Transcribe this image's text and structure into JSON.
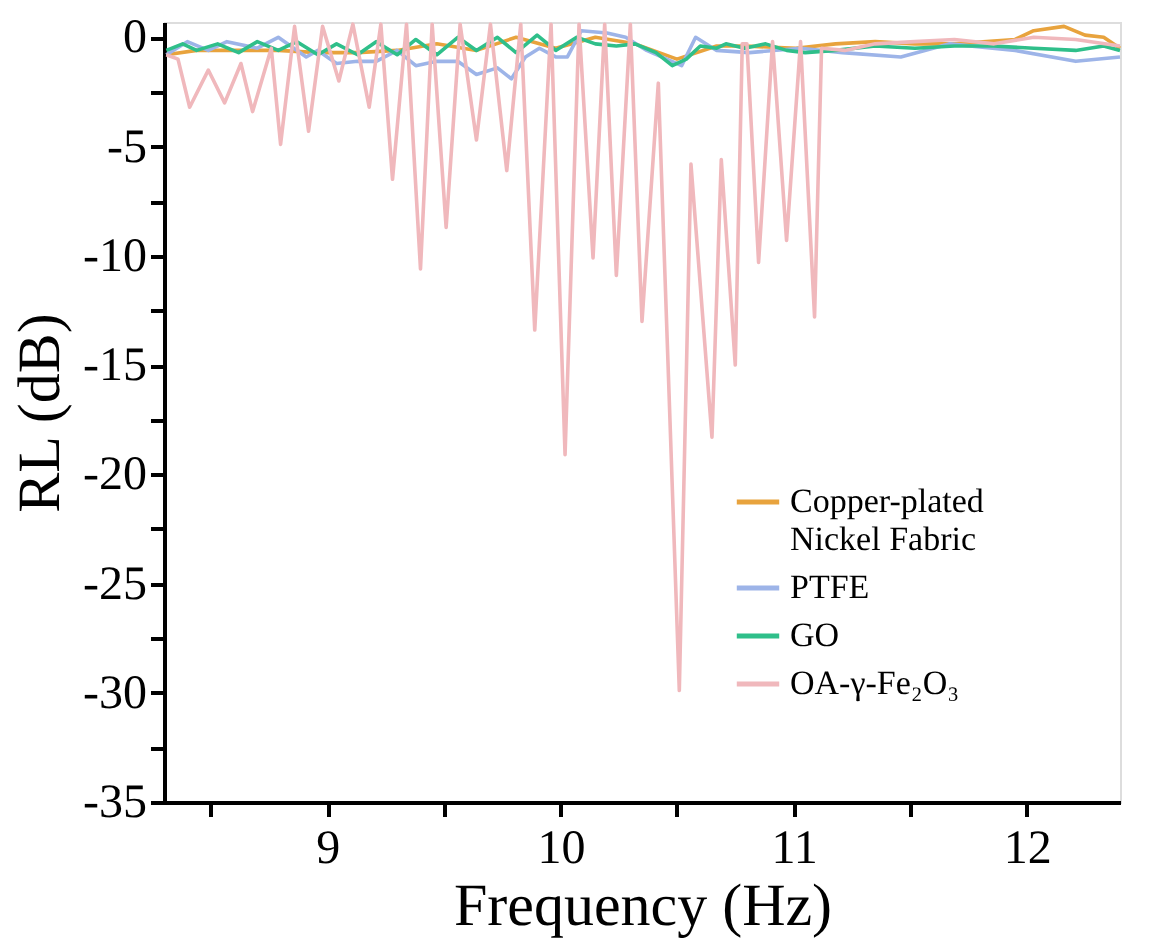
{
  "chart_data": {
    "type": "line",
    "xlabel": "Frequency (Hz)",
    "ylabel": "RL (dB)",
    "xlim": [
      8.3,
      12.4
    ],
    "xticks": [
      {
        "value": 8.5,
        "label": null
      },
      9,
      {
        "value": 9.5,
        "label": null
      },
      10,
      {
        "value": 10.5,
        "label": null
      },
      11,
      {
        "value": 11.5,
        "label": null
      },
      12
    ],
    "ylim": [
      -35,
      0.7
    ],
    "yticks": [
      0,
      {
        "value": -2.5,
        "label": null
      },
      -5,
      {
        "value": -7.5,
        "label": null
      },
      -10,
      {
        "value": -12.5,
        "label": null
      },
      -15,
      {
        "value": -17.5,
        "label": null
      },
      -20,
      {
        "value": -22.5,
        "label": null
      },
      -25,
      {
        "value": -27.5,
        "label": null
      },
      -30,
      {
        "value": -32.5,
        "label": null
      },
      -35
    ],
    "grid": false,
    "legend": "bottom right",
    "marker": "none",
    "line_style": "solid",
    "series": [
      {
        "name": "Copper-plated Nickel Fabric",
        "color": "#e8a33d",
        "x": [
          8.31,
          8.44,
          8.62,
          8.79,
          8.96,
          9.13,
          9.3,
          9.47,
          9.64,
          9.81,
          9.98,
          10.15,
          10.32,
          10.5,
          10.67,
          10.79,
          11.01,
          11.18,
          11.35,
          11.52,
          11.69,
          11.95,
          12.03,
          12.16,
          12.25,
          12.33,
          12.4
        ],
        "values": [
          -0.8,
          -0.6,
          -0.6,
          -0.6,
          -0.7,
          -0.7,
          -0.6,
          -0.3,
          -0.6,
          0,
          -0.5,
          0,
          -0.3,
          -1.0,
          -0.4,
          -0.4,
          -0.5,
          -0.3,
          -0.2,
          -0.3,
          -0.3,
          -0.1,
          0.3,
          0.5,
          0.1,
          0,
          -0.5
        ]
      },
      {
        "name": "PTFE",
        "color": "#9db4e8",
        "x": [
          8.31,
          8.4,
          8.49,
          8.57,
          8.7,
          8.79,
          8.91,
          8.96,
          9.04,
          9.13,
          9.21,
          9.3,
          9.38,
          9.47,
          9.56,
          9.64,
          9.73,
          9.79,
          9.85,
          9.91,
          9.98,
          10.03,
          10.09,
          10.2,
          10.28,
          10.37,
          10.52,
          10.58,
          10.67,
          10.81,
          11.03,
          11.21,
          11.46,
          11.67,
          11.95,
          12.21,
          12.4
        ],
        "values": [
          -0.8,
          -0.2,
          -0.6,
          -0.2,
          -0.5,
          0,
          -0.9,
          -0.6,
          -1.2,
          -1.1,
          -1.1,
          -0.6,
          -1.3,
          -1.1,
          -1.1,
          -1.7,
          -1.4,
          -1.9,
          -0.9,
          -0.5,
          -0.9,
          -0.9,
          0.3,
          0.2,
          0,
          -0.6,
          -1.3,
          0,
          -0.6,
          -0.7,
          -0.5,
          -0.7,
          -0.9,
          -0.3,
          -0.6,
          -1.1,
          -0.9
        ]
      },
      {
        "name": "GO",
        "color": "#2fbf8a",
        "x": [
          8.31,
          8.38,
          8.44,
          8.53,
          8.62,
          8.7,
          8.79,
          8.87,
          8.96,
          9.04,
          9.13,
          9.21,
          9.3,
          9.38,
          9.47,
          9.56,
          9.64,
          9.73,
          9.81,
          9.9,
          9.98,
          10.07,
          10.15,
          10.24,
          10.32,
          10.41,
          10.48,
          10.54,
          10.6,
          10.67,
          10.71,
          10.79,
          10.88,
          10.97,
          11.05,
          11.18,
          11.35,
          11.52,
          11.69,
          11.86,
          12.03,
          12.21,
          12.33,
          12.4
        ],
        "values": [
          -0.6,
          -0.3,
          -0.6,
          -0.3,
          -0.7,
          -0.2,
          -0.6,
          -0.2,
          -0.8,
          -0.3,
          -0.8,
          -0.2,
          -0.8,
          -0.1,
          -0.8,
          0,
          -0.6,
          0,
          -0.7,
          0.1,
          -0.6,
          0,
          -0.3,
          -0.4,
          -0.3,
          -0.7,
          -1.3,
          -1.0,
          -0.4,
          -0.5,
          -0.3,
          -0.5,
          -0.3,
          -0.6,
          -0.7,
          -0.6,
          -0.4,
          -0.5,
          -0.4,
          -0.4,
          -0.5,
          -0.6,
          -0.4,
          -0.6
        ]
      },
      {
        "name": "OA-γ-Fe₂O₃",
        "color": "#f0b8bc",
        "x": [
          8.31,
          8.36,
          8.41,
          8.49,
          8.56,
          8.63,
          8.68,
          8.76,
          8.8,
          8.86,
          8.92,
          8.98,
          9.05,
          9.11,
          9.18,
          9.23,
          9.28,
          9.34,
          9.4,
          9.45,
          9.51,
          9.57,
          9.64,
          9.7,
          9.77,
          9.83,
          9.89,
          9.96,
          10.02,
          10.08,
          10.14,
          10.19,
          10.24,
          10.3,
          10.35,
          10.42,
          10.51,
          10.56,
          10.65,
          10.69,
          10.75,
          10.78,
          10.8,
          10.85,
          10.91,
          10.97,
          11.03,
          11.09,
          11.12,
          11.22,
          11.35,
          11.52,
          11.69,
          11.86,
          12.03,
          12.21,
          12.4
        ],
        "values": [
          -0.8,
          -1.0,
          -3.2,
          -1.5,
          -3.0,
          -1.2,
          -3.4,
          -0.5,
          -4.9,
          0.5,
          -4.3,
          0.5,
          -2.0,
          0.6,
          -3.2,
          0.6,
          -6.5,
          0.6,
          -10.6,
          0.6,
          -8.7,
          0.6,
          -4.7,
          0.6,
          -6.1,
          0.6,
          -13.4,
          0.6,
          -19.1,
          0.6,
          -10.1,
          0.6,
          -10.9,
          0.6,
          -13.0,
          -2.1,
          -29.9,
          -5.8,
          -18.3,
          -5.6,
          -15.0,
          -0.3,
          -0.3,
          -10.3,
          -0.2,
          -9.3,
          -0.2,
          -12.8,
          -0.5,
          -0.6,
          -0.3,
          -0.2,
          -0.1,
          -0.3,
          0.0,
          -0.1,
          -0.4
        ]
      }
    ]
  }
}
